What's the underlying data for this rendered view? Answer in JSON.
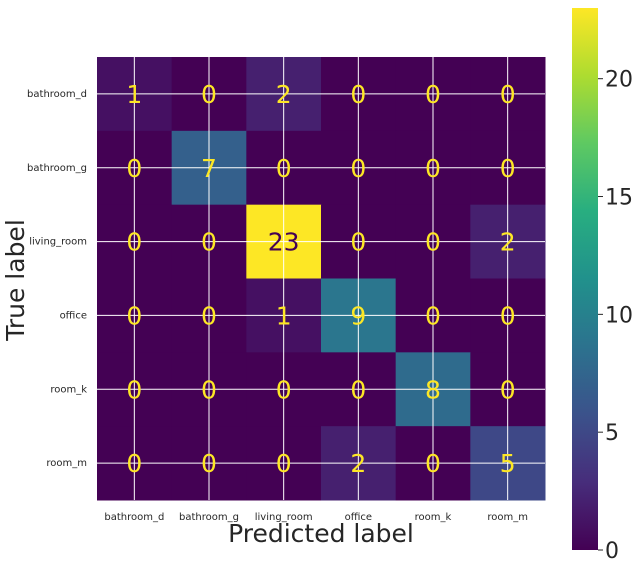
{
  "chart_data": {
    "type": "heatmap",
    "title": "",
    "xlabel": "Predicted label",
    "ylabel": "True label",
    "x_categories": [
      "bathroom_d",
      "bathroom_g",
      "living_room",
      "office",
      "room_k",
      "room_m"
    ],
    "y_categories": [
      "bathroom_d",
      "bathroom_g",
      "living_room",
      "office",
      "room_k",
      "room_m"
    ],
    "values": [
      [
        1,
        0,
        2,
        0,
        0,
        0
      ],
      [
        0,
        7,
        0,
        0,
        0,
        0
      ],
      [
        0,
        0,
        23,
        0,
        0,
        2
      ],
      [
        0,
        0,
        1,
        9,
        0,
        0
      ],
      [
        0,
        0,
        0,
        0,
        8,
        0
      ],
      [
        0,
        0,
        0,
        2,
        0,
        5
      ]
    ],
    "colormap": "viridis",
    "colorbar": {
      "range": [
        0,
        23
      ],
      "ticks": [
        "0",
        "5",
        "10",
        "15",
        "20"
      ]
    },
    "grid": true,
    "text_colors": {
      "on_dark": "#fde725",
      "on_light": "#440154"
    }
  }
}
